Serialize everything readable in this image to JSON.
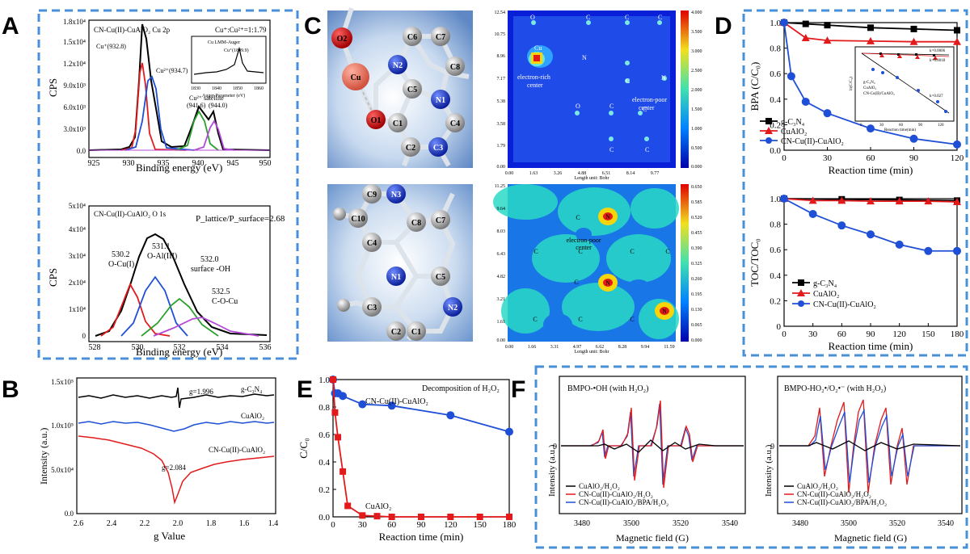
{
  "figure": {
    "panel_letters": [
      "A",
      "B",
      "C",
      "D",
      "E",
      "F"
    ]
  },
  "xps_cu": {
    "title": "CN-Cu(II)-CuAlO₂ Cu 2p",
    "ratio": "Cu⁺:Cu²⁺=1:1.79",
    "peaks": [
      "Cu⁺(932.8)",
      "Cu²⁺(934.7)",
      "Cu²⁺ satellite",
      "(941.6)",
      "(944.0)"
    ],
    "inset": {
      "title": "Cu LMM-Auger",
      "peak": "Cu⁺(1849.9)",
      "xlabel": "Auger Parameter (eV)",
      "xticks": [
        "1830",
        "1840",
        "1850",
        "1860"
      ]
    },
    "ylabel": "CPS",
    "xlabel": "Binding energy (eV)",
    "xticks": [
      "925",
      "930",
      "935",
      "940",
      "945",
      "950"
    ],
    "yticks": [
      "0.0",
      "3.0x10³",
      "6.0x10³",
      "9.0x10³",
      "1.2x10⁴",
      "1.5x10⁴",
      "1.8x10⁴"
    ]
  },
  "xps_o": {
    "title": "CN-Cu(II)-CuAlO₂ O 1s",
    "ratio": "P_lattice/P_surface=2.68",
    "peaks": [
      "530.2",
      "O-Cu(I)",
      "531.1",
      "O-Al(III)",
      "532.0",
      "surface -OH",
      "532.5",
      "C-O-Cu"
    ],
    "ylabel": "CPS",
    "xlabel": "Binding energy (eV)",
    "xticks": [
      "528",
      "530",
      "532",
      "534",
      "536"
    ],
    "yticks": [
      "0",
      "1x10⁴",
      "2x10⁴",
      "3x10⁴",
      "4x10⁴",
      "5x10⁴"
    ]
  },
  "epr": {
    "ylabel": "Intensity (a.u.)",
    "xlabel": "g Value",
    "xticks": [
      "2.6",
      "2.4",
      "2.2",
      "2.0",
      "1.8",
      "1.6",
      "1.4"
    ],
    "yticks": [
      "0.0",
      "5.0x10⁴",
      "1.0x10⁵",
      "1.5x10⁵"
    ],
    "labels": [
      "g-C₃N₄",
      "CuAlO₂",
      "CN-Cu(II)-CuAlO₂",
      "g=1.996",
      "g=2.084"
    ]
  },
  "dft": {
    "atoms_top": [
      "O2",
      "Cu",
      "O1",
      "C6",
      "C7",
      "N2",
      "C8",
      "C5",
      "N1",
      "C1",
      "C4",
      "C2",
      "C3"
    ],
    "atoms_bottom": [
      "C9",
      "N3",
      "C10",
      "C8",
      "C7",
      "C4",
      "N1",
      "C3",
      "C5",
      "N2",
      "C2",
      "C1"
    ],
    "map_top": {
      "labels": [
        "O",
        "C",
        "C",
        "Cu",
        "N",
        "C",
        "N",
        "O",
        "C",
        "C",
        "C",
        "C",
        "C"
      ],
      "notes": [
        "electron-rich",
        "center",
        "electron-poor",
        "center"
      ],
      "yticks": [
        "0.00",
        "1.79",
        "3.58",
        "5.38",
        "7.17",
        "8.96",
        "10.75",
        "12.54"
      ],
      "xticks": [
        "0.00",
        "1.63",
        "3.26",
        "4.88",
        "6.51",
        "8.14",
        "9.77"
      ],
      "xlabel": "Length unit: Bohr",
      "cbar": [
        "4.000",
        "3.500",
        "3.000",
        "2.500",
        "2.000",
        "1.500",
        "1.000",
        "0.500",
        "0.000"
      ]
    },
    "map_bottom": {
      "labels": [
        "C",
        "C",
        "N",
        "C",
        "C",
        "C",
        "C",
        "N",
        "C",
        "C",
        "C",
        "N"
      ],
      "notes": [
        "electron-poor",
        "center"
      ],
      "yticks": [
        "0.00",
        "1.61",
        "3.21",
        "4.82",
        "6.43",
        "8.03",
        "9.64",
        "11.25"
      ],
      "xticks": [
        "0.00",
        "1.66",
        "3.31",
        "4.97",
        "6.62",
        "8.28",
        "9.94",
        "11.59"
      ],
      "xlabel": "Length unit: Bohr",
      "cbar": [
        "0.650",
        "0.585",
        "0.520",
        "0.455",
        "0.390",
        "0.325",
        "0.260",
        "0.195",
        "0.130",
        "0.065",
        "0.000"
      ]
    }
  },
  "chart_data": [
    {
      "id": "D-top",
      "type": "line",
      "xlabel": "Reaction time (min)",
      "ylabel": "BPA (C/C₀)",
      "xlim": [
        0,
        120
      ],
      "ylim": [
        0,
        1.0
      ],
      "xticks": [
        0,
        30,
        60,
        90,
        120
      ],
      "yticks": [
        0.0,
        0.2,
        0.4,
        0.6,
        0.8,
        1.0
      ],
      "ytick_labels": [
        "0.0",
        "0.2",
        "0.4",
        "0.6",
        "0.8",
        "1.0"
      ],
      "legend_position": "bottom-left",
      "series": [
        {
          "name": "g-C₃N₄",
          "color": "#000000",
          "marker": "square",
          "x": [
            0,
            15,
            30,
            60,
            90,
            120
          ],
          "y": [
            1.0,
            0.99,
            0.98,
            0.96,
            0.95,
            0.94
          ]
        },
        {
          "name": "CuAlO₂",
          "color": "#e31a1c",
          "marker": "triangle",
          "x": [
            0,
            15,
            30,
            60,
            90,
            120
          ],
          "y": [
            1.0,
            0.88,
            0.86,
            0.855,
            0.85,
            0.85
          ]
        },
        {
          "name": "CN-Cu(II)-CuAlO₂",
          "color": "#1f4fd6",
          "marker": "circle",
          "x": [
            0,
            5,
            15,
            30,
            60,
            90,
            120
          ],
          "y": [
            1.0,
            0.58,
            0.38,
            0.29,
            0.17,
            0.09,
            0.045
          ]
        }
      ],
      "inset": {
        "xlabel": "Reaction time(min)",
        "ylabel": "ln(C/C₀)",
        "xticks": [
          "0",
          "30",
          "60",
          "90",
          "120"
        ],
        "notes": [
          "k=0.0006",
          "k=0.0018",
          "k=0.027"
        ],
        "legend": [
          "g-C₃N₄",
          "CuAlO₂",
          "CN-Cu(II)/CuAlO₂"
        ]
      }
    },
    {
      "id": "D-bottom",
      "type": "line",
      "xlabel": "Reaction time (min)",
      "ylabel": "TOC/TOC₀",
      "xlim": [
        0,
        180
      ],
      "ylim": [
        0,
        1.0
      ],
      "xticks": [
        0,
        30,
        60,
        90,
        120,
        150,
        180
      ],
      "yticks": [
        0.0,
        0.2,
        0.4,
        0.6,
        0.8,
        1.0
      ],
      "ytick_labels": [
        "0",
        "0.2",
        "0.4",
        "0.6",
        "0.8",
        "1.0"
      ],
      "legend_position": "middle-left",
      "series": [
        {
          "name": "g-C₃N₄",
          "color": "#000000",
          "marker": "square",
          "x": [
            0,
            60,
            120,
            180
          ],
          "y": [
            1.0,
            0.995,
            0.99,
            0.985
          ]
        },
        {
          "name": "CuAlO₂",
          "color": "#e31a1c",
          "marker": "triangle",
          "x": [
            0,
            30,
            60,
            90,
            120,
            150,
            180
          ],
          "y": [
            1.0,
            0.985,
            0.985,
            0.98,
            0.98,
            0.98,
            0.975
          ]
        },
        {
          "name": "CN-Cu(II)-CuAlO₂",
          "color": "#1f4fd6",
          "marker": "circle",
          "x": [
            0,
            30,
            60,
            90,
            120,
            150,
            180
          ],
          "y": [
            1.0,
            0.88,
            0.79,
            0.72,
            0.64,
            0.59,
            0.59
          ]
        }
      ]
    },
    {
      "id": "E",
      "type": "line",
      "title": "Decomposition of H₂O₂",
      "xlabel": "Reaction time (min)",
      "ylabel": "C/C₀",
      "xlim": [
        0,
        180
      ],
      "ylim": [
        0,
        1.0
      ],
      "xticks": [
        0,
        30,
        60,
        90,
        120,
        150,
        180
      ],
      "yticks": [
        0.0,
        0.2,
        0.4,
        0.6,
        0.8,
        1.0
      ],
      "ytick_labels": [
        "0.0",
        "0.2",
        "0.4",
        "0.6",
        "0.8",
        "1.0"
      ],
      "series": [
        {
          "name": "CN-Cu(II)-CuAlO₂",
          "color": "#1f4fd6",
          "marker": "circle",
          "x": [
            0,
            2,
            5,
            10,
            30,
            60,
            120,
            180
          ],
          "y": [
            1.0,
            0.9,
            0.9,
            0.88,
            0.82,
            0.81,
            0.74,
            0.62
          ]
        },
        {
          "name": "CuAlO₂",
          "color": "#e31a1c",
          "marker": "square",
          "x": [
            0,
            2,
            5,
            10,
            15,
            30,
            45,
            60,
            90,
            120,
            150,
            180
          ],
          "y": [
            1.0,
            0.76,
            0.58,
            0.33,
            0.08,
            0.01,
            0.005,
            0.0,
            0.0,
            0.0,
            0.0,
            0.0
          ]
        }
      ]
    }
  ],
  "esr": [
    {
      "title": "BMPO-•OH (with H₂O₂)",
      "xlabel": "Magnetic field (G)",
      "ylabel": "Intensity (a.u.)",
      "xticks": [
        "3480",
        "3500",
        "3520",
        "3540"
      ],
      "ytick": "0",
      "legend": [
        "CuAlO₂/H₂O₂",
        "CN-Cu(II)-CuAlO₂/H₂O₂",
        "CN-Cu(II)-CuAlO₂/BPA/H₂O₂"
      ]
    },
    {
      "title": "BMPO-HO₂•/O₂•⁻ (with H₂O₂)",
      "xlabel": "Magnetic field (G)",
      "ylabel": "Intensity (a.u.)",
      "xticks": [
        "3480",
        "3500",
        "3520",
        "3540"
      ],
      "ytick": "0",
      "legend": [
        "CuAlO₂/H₂O₂",
        "CN-Cu(II)-CuAlO₂/H₂O₂",
        "CN-Cu(II)-CuAlO₂/BPA/H₂O₂"
      ]
    }
  ],
  "colors": {
    "frame": "#4a90d9",
    "black": "#000000",
    "red": "#e31a1c",
    "blue": "#1f4fd6",
    "green": "#2ca02c",
    "violet": "#b44bd6"
  }
}
